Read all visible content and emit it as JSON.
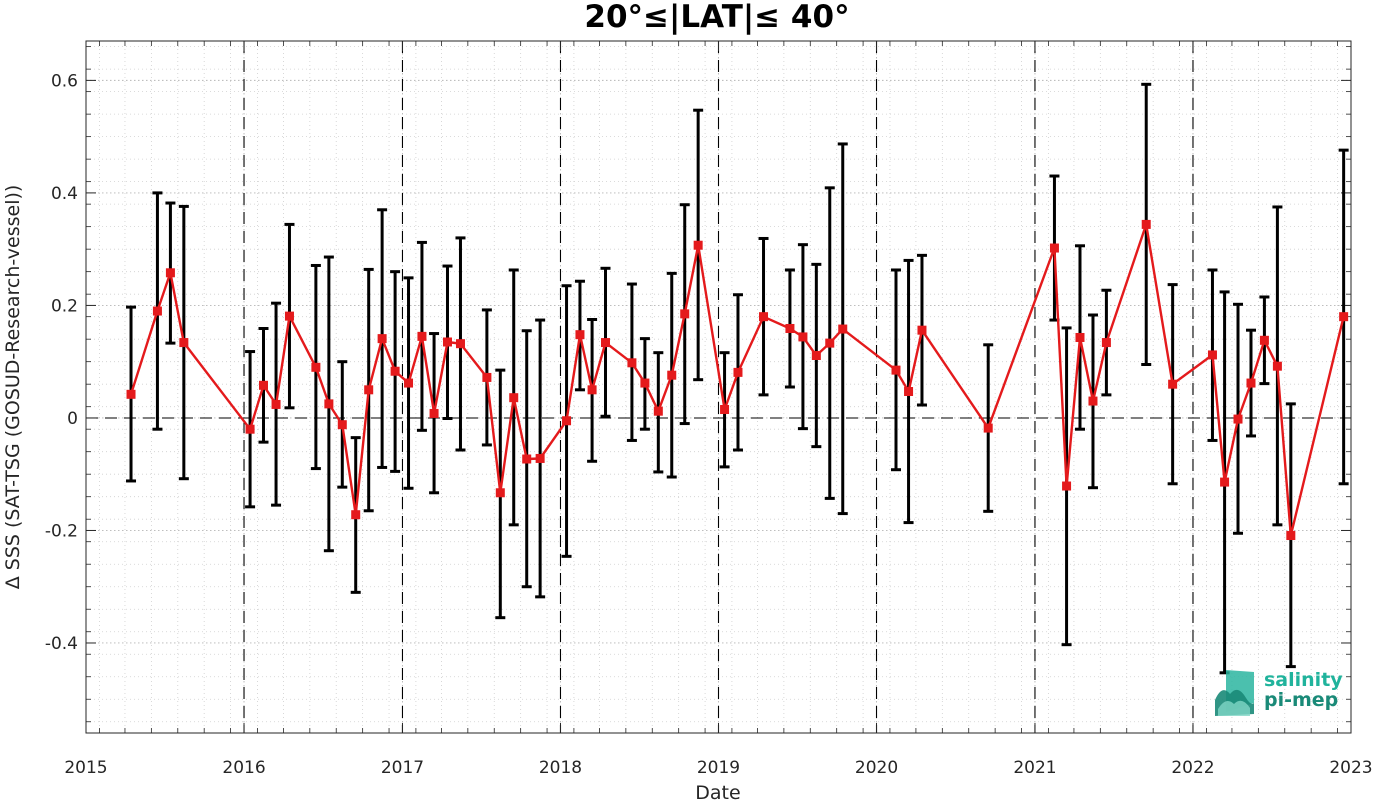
{
  "chart_data": {
    "type": "line",
    "title": "20°≤|LAT|≤ 40°",
    "xlabel": "Date",
    "ylabel": "Δ SSS (SAT-TSG (GOSUD-Research-vessel))",
    "xlim": [
      "2015-01-01",
      "2023-01-01"
    ],
    "ylim": [
      -0.56,
      0.67
    ],
    "x_ticks": [
      "2015",
      "2016",
      "2017",
      "2018",
      "2019",
      "2020",
      "2021",
      "2022",
      "2023"
    ],
    "y_ticks": [
      "-0.4",
      "-0.2",
      "0",
      "0.2",
      "0.4",
      "0.6"
    ],
    "grid": true,
    "year_divider_lines": "dashed",
    "zero_line": "dashed",
    "series": [
      {
        "color": "#e41a1c",
        "marker": "square",
        "errorbar_color": "#000000",
        "points": [
          {
            "x": "2015-04-15",
            "y": 0.042,
            "lo": -0.112,
            "hi": 0.197
          },
          {
            "x": "2015-06-15",
            "y": 0.19,
            "lo": -0.02,
            "hi": 0.4
          },
          {
            "x": "2015-07-15",
            "y": 0.258,
            "lo": 0.133,
            "hi": 0.382
          },
          {
            "x": "2015-08-15",
            "y": 0.134,
            "lo": -0.108,
            "hi": 0.376
          },
          {
            "x": "2016-01-15",
            "y": -0.02,
            "lo": -0.158,
            "hi": 0.118
          },
          {
            "x": "2016-02-15",
            "y": 0.058,
            "lo": -0.043,
            "hi": 0.159
          },
          {
            "x": "2016-03-15",
            "y": 0.024,
            "lo": -0.155,
            "hi": 0.204
          },
          {
            "x": "2016-04-15",
            "y": 0.181,
            "lo": 0.018,
            "hi": 0.344
          },
          {
            "x": "2016-06-15",
            "y": 0.09,
            "lo": -0.09,
            "hi": 0.271
          },
          {
            "x": "2016-07-15",
            "y": 0.025,
            "lo": -0.236,
            "hi": 0.286
          },
          {
            "x": "2016-08-15",
            "y": -0.012,
            "lo": -0.123,
            "hi": 0.1
          },
          {
            "x": "2016-09-15",
            "y": -0.172,
            "lo": -0.31,
            "hi": -0.035
          },
          {
            "x": "2016-10-15",
            "y": 0.05,
            "lo": -0.165,
            "hi": 0.264
          },
          {
            "x": "2016-11-15",
            "y": 0.141,
            "lo": -0.088,
            "hi": 0.37
          },
          {
            "x": "2016-12-15",
            "y": 0.083,
            "lo": -0.095,
            "hi": 0.26
          },
          {
            "x": "2017-01-15",
            "y": 0.062,
            "lo": -0.125,
            "hi": 0.249
          },
          {
            "x": "2017-02-15",
            "y": 0.145,
            "lo": -0.022,
            "hi": 0.312
          },
          {
            "x": "2017-03-15",
            "y": 0.008,
            "lo": -0.133,
            "hi": 0.15
          },
          {
            "x": "2017-04-15",
            "y": 0.135,
            "lo": -0.001,
            "hi": 0.27
          },
          {
            "x": "2017-05-15",
            "y": 0.132,
            "lo": -0.057,
            "hi": 0.32
          },
          {
            "x": "2017-07-15",
            "y": 0.072,
            "lo": -0.048,
            "hi": 0.192
          },
          {
            "x": "2017-08-15",
            "y": -0.133,
            "lo": -0.355,
            "hi": 0.085
          },
          {
            "x": "2017-09-15",
            "y": 0.036,
            "lo": -0.19,
            "hi": 0.263
          },
          {
            "x": "2017-10-15",
            "y": -0.073,
            "lo": -0.3,
            "hi": 0.155
          },
          {
            "x": "2017-11-15",
            "y": -0.072,
            "lo": -0.318,
            "hi": 0.174
          },
          {
            "x": "2018-01-15",
            "y": -0.005,
            "lo": -0.246,
            "hi": 0.235
          },
          {
            "x": "2018-02-15",
            "y": 0.148,
            "lo": 0.05,
            "hi": 0.243
          },
          {
            "x": "2018-03-15",
            "y": 0.05,
            "lo": -0.077,
            "hi": 0.175
          },
          {
            "x": "2018-04-15",
            "y": 0.134,
            "lo": 0.003,
            "hi": 0.266
          },
          {
            "x": "2018-06-15",
            "y": 0.098,
            "lo": -0.04,
            "hi": 0.238
          },
          {
            "x": "2018-07-15",
            "y": 0.062,
            "lo": -0.02,
            "hi": 0.141
          },
          {
            "x": "2018-08-15",
            "y": 0.012,
            "lo": -0.096,
            "hi": 0.116
          },
          {
            "x": "2018-09-15",
            "y": 0.076,
            "lo": -0.105,
            "hi": 0.257
          },
          {
            "x": "2018-10-15",
            "y": 0.185,
            "lo": -0.01,
            "hi": 0.379
          },
          {
            "x": "2018-11-15",
            "y": 0.307,
            "lo": 0.068,
            "hi": 0.547
          },
          {
            "x": "2019-01-15",
            "y": 0.015,
            "lo": -0.087,
            "hi": 0.116
          },
          {
            "x": "2019-02-15",
            "y": 0.081,
            "lo": -0.057,
            "hi": 0.219
          },
          {
            "x": "2019-04-15",
            "y": 0.18,
            "lo": 0.041,
            "hi": 0.319
          },
          {
            "x": "2019-06-15",
            "y": 0.159,
            "lo": 0.055,
            "hi": 0.263
          },
          {
            "x": "2019-07-15",
            "y": 0.144,
            "lo": -0.019,
            "hi": 0.308
          },
          {
            "x": "2019-08-15",
            "y": 0.111,
            "lo": -0.051,
            "hi": 0.273
          },
          {
            "x": "2019-09-15",
            "y": 0.133,
            "lo": -0.143,
            "hi": 0.409
          },
          {
            "x": "2019-10-15",
            "y": 0.158,
            "lo": -0.17,
            "hi": 0.487
          },
          {
            "x": "2020-02-15",
            "y": 0.085,
            "lo": -0.092,
            "hi": 0.263
          },
          {
            "x": "2020-03-15",
            "y": 0.047,
            "lo": -0.186,
            "hi": 0.28
          },
          {
            "x": "2020-04-15",
            "y": 0.156,
            "lo": 0.023,
            "hi": 0.289
          },
          {
            "x": "2020-09-15",
            "y": -0.018,
            "lo": -0.166,
            "hi": 0.13
          },
          {
            "x": "2021-02-15",
            "y": 0.302,
            "lo": 0.174,
            "hi": 0.43
          },
          {
            "x": "2021-03-15",
            "y": -0.121,
            "lo": -0.403,
            "hi": 0.16
          },
          {
            "x": "2021-04-15",
            "y": 0.143,
            "lo": -0.02,
            "hi": 0.306
          },
          {
            "x": "2021-05-15",
            "y": 0.03,
            "lo": -0.124,
            "hi": 0.183
          },
          {
            "x": "2021-06-15",
            "y": 0.134,
            "lo": 0.041,
            "hi": 0.227
          },
          {
            "x": "2021-09-15",
            "y": 0.344,
            "lo": 0.095,
            "hi": 0.593
          },
          {
            "x": "2021-11-15",
            "y": 0.06,
            "lo": -0.117,
            "hi": 0.237
          },
          {
            "x": "2022-02-15",
            "y": 0.112,
            "lo": -0.04,
            "hi": 0.263
          },
          {
            "x": "2022-03-15",
            "y": -0.114,
            "lo": -0.453,
            "hi": 0.224
          },
          {
            "x": "2022-04-15",
            "y": -0.002,
            "lo": -0.205,
            "hi": 0.202
          },
          {
            "x": "2022-05-15",
            "y": 0.062,
            "lo": -0.032,
            "hi": 0.156
          },
          {
            "x": "2022-06-15",
            "y": 0.138,
            "lo": 0.061,
            "hi": 0.215
          },
          {
            "x": "2022-07-15",
            "y": 0.092,
            "lo": -0.19,
            "hi": 0.375
          },
          {
            "x": "2022-08-15",
            "y": -0.209,
            "lo": -0.442,
            "hi": 0.025
          },
          {
            "x": "2022-12-15",
            "y": 0.18,
            "lo": -0.117,
            "hi": 0.476
          }
        ]
      }
    ]
  },
  "logo": {
    "line1": "salinity",
    "line2": "pi-mep",
    "color_top": "#20b39c",
    "color_bottom": "#1a8a78"
  }
}
